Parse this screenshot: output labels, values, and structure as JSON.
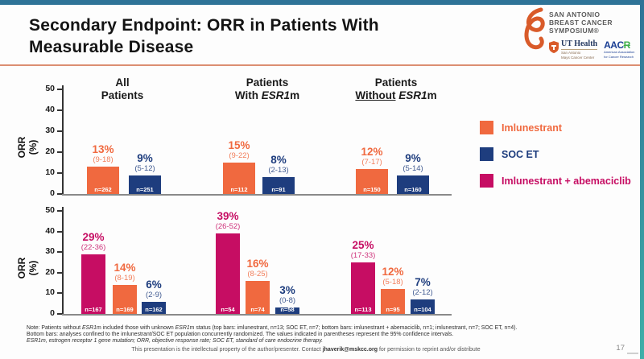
{
  "title": {
    "line1": "Secondary Endpoint: ORR in Patients With",
    "line2": "Measurable Disease"
  },
  "logos": {
    "sabcs": {
      "line1": "SAN ANTONIO",
      "line2": "BREAST CANCER",
      "line3": "SYMPOSIUM®"
    },
    "ut_health": {
      "name": "UT Health",
      "sub1": "San Antonio",
      "sub2": "Mays Cancer Center"
    },
    "aacr": {
      "name": "AAC",
      "name_r": "R",
      "sub1": "American Association",
      "sub2": "for Cancer Research"
    }
  },
  "colors": {
    "imlunestrant": "#f0693f",
    "soc_et": "#1e3d7e",
    "imlunestrant_abemaciclib": "#c60d63",
    "accent_strip": "#2e7397",
    "title_rule": "#dc8e72"
  },
  "legend": [
    {
      "label": "Imlunestrant",
      "color": "#f0693f"
    },
    {
      "label": "SOC ET",
      "color": "#1e3d7e"
    },
    {
      "label": "Imlunestrant + abemaciclib",
      "color": "#c60d63"
    }
  ],
  "chart_data": [
    {
      "type": "bar",
      "title": "ORR in patients with measurable disease (monotherapy comparison)",
      "ylabel": "ORR (%)",
      "ylim": [
        0,
        50
      ],
      "yticks": [
        0,
        10,
        20,
        30,
        40,
        50
      ],
      "grid": false,
      "categories": [
        "All Patients",
        "Patients With ESR1m",
        "Patients Without ESR1m"
      ],
      "groups": [
        {
          "header_line1": "All",
          "header_line2": "Patients",
          "bars": [
            {
              "series": "Imlunestrant",
              "value": 13,
              "pct": "13%",
              "ci": "(9-18)",
              "n": "n=262",
              "color": "#f0693f"
            },
            {
              "series": "SOC ET",
              "value": 9,
              "pct": "9%",
              "ci": "(5-12)",
              "n": "n=251",
              "color": "#1e3d7e"
            }
          ]
        },
        {
          "header_line1": "Patients",
          "header_line2": "With ESR1m",
          "bars": [
            {
              "series": "Imlunestrant",
              "value": 15,
              "pct": "15%",
              "ci": "(9-22)",
              "n": "n=112",
              "color": "#f0693f"
            },
            {
              "series": "SOC ET",
              "value": 8,
              "pct": "8%",
              "ci": "(2-13)",
              "n": "n=91",
              "color": "#1e3d7e"
            }
          ]
        },
        {
          "header_line1": "Patients",
          "header_line2": "Without ESR1m",
          "bars": [
            {
              "series": "Imlunestrant",
              "value": 12,
              "pct": "12%",
              "ci": "(7-17)",
              "n": "n=150",
              "color": "#f0693f"
            },
            {
              "series": "SOC ET",
              "value": 9,
              "pct": "9%",
              "ci": "(5-14)",
              "n": "n=160",
              "color": "#1e3d7e"
            }
          ]
        }
      ]
    },
    {
      "type": "bar",
      "title": "ORR in patients with measurable disease (combination comparison, concurrently randomized)",
      "ylabel": "ORR (%)",
      "ylim": [
        0,
        50
      ],
      "yticks": [
        0,
        10,
        20,
        30,
        40,
        50
      ],
      "grid": false,
      "categories": [
        "All Patients",
        "Patients With ESR1m",
        "Patients Without ESR1m"
      ],
      "groups": [
        {
          "bars": [
            {
              "series": "Imlunestrant + abemaciclib",
              "value": 29,
              "pct": "29%",
              "ci": "(22-36)",
              "n": "n=167",
              "color": "#c60d63"
            },
            {
              "series": "Imlunestrant",
              "value": 14,
              "pct": "14%",
              "ci": "(8-19)",
              "n": "n=169",
              "color": "#f0693f"
            },
            {
              "series": "SOC ET",
              "value": 6,
              "pct": "6%",
              "ci": "(2-9)",
              "n": "n=162",
              "color": "#1e3d7e"
            }
          ]
        },
        {
          "bars": [
            {
              "series": "Imlunestrant + abemaciclib",
              "value": 39,
              "pct": "39%",
              "ci": "(26-52)",
              "n": "n=54",
              "color": "#c60d63"
            },
            {
              "series": "Imlunestrant",
              "value": 16,
              "pct": "16%",
              "ci": "(8-25)",
              "n": "n=74",
              "color": "#f0693f"
            },
            {
              "series": "SOC ET",
              "value": 3,
              "pct": "3%",
              "ci": "(0-8)",
              "n": "n=58",
              "color": "#1e3d7e"
            }
          ]
        },
        {
          "bars": [
            {
              "series": "Imlunestrant + abemaciclib",
              "value": 25,
              "pct": "25%",
              "ci": "(17-33)",
              "n": "n=113",
              "color": "#c60d63"
            },
            {
              "series": "Imlunestrant",
              "value": 12,
              "pct": "12%",
              "ci": "(5-18)",
              "n": "n=95",
              "color": "#f0693f"
            },
            {
              "series": "SOC ET",
              "value": 7,
              "pct": "7%",
              "ci": "(2-12)",
              "n": "n=104",
              "color": "#1e3d7e"
            }
          ]
        }
      ]
    }
  ],
  "notes": [
    "Note: Patients without ESR1m included those with unknown ESR1m status (top bars: imlunestrant, n=13; SOC ET, n=7; bottom bars: imlunestrant + abemaciclib, n=1; imlunestrant, n=7; SOC ET, n=4).",
    "Bottom bars: analyses confined to the imlunestrant/SOC ET population concurrently randomized. The values indicated in parentheses represent the 95% confidence intervals.",
    "ESR1m, estrogen receptor 1 gene mutation; ORR, objective response rate; SOC ET, standard of care endocrine therapy."
  ],
  "footer": {
    "pre": "This presentation is the intellectual property of the author/presenter.  Contact ",
    "email": "jhaverik@mskcc.org",
    "post": " for permission to reprint and/or distribute"
  },
  "page_number": "17"
}
